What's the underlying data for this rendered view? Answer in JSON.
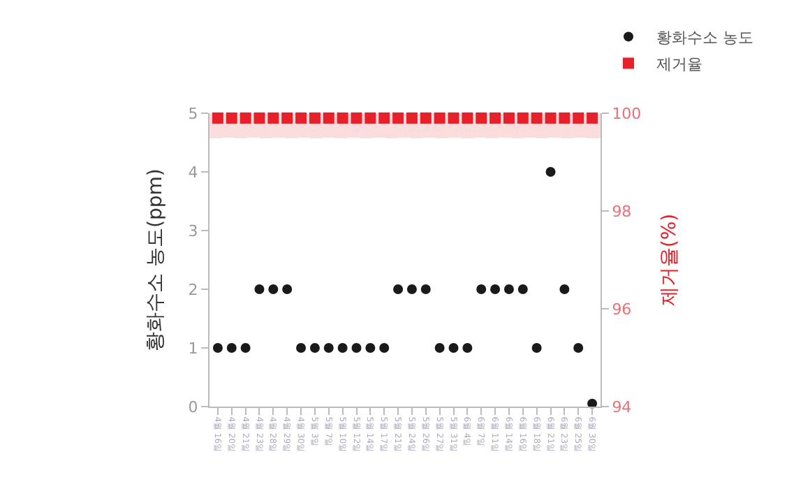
{
  "chart_data": {
    "type": "scatter",
    "xlabel": null,
    "ylabel": "황화수소 농도(ppm)",
    "y2label": "제거율(%)",
    "categories": [
      "4월 16일",
      "4월 20일",
      "4월 21일",
      "4월 23일",
      "4월 28일",
      "4월 29일",
      "4월 30일",
      "5월 3일",
      "5월 7일",
      "5월 10일",
      "5월 12일",
      "5월 14일",
      "5월 17일",
      "5월 21일",
      "5월 24일",
      "5월 26일",
      "5월 27일",
      "5월 31일",
      "6월 4일",
      "6월 7일",
      "6월 11일",
      "6월 14일",
      "6월 16일",
      "6월 18일",
      "6월 21일",
      "6월 23일",
      "6월 25일",
      "6월 30일"
    ],
    "series": [
      {
        "name": "황화수소 농도",
        "color": "#1a1a1a",
        "marker": "circle",
        "values": [
          1,
          1,
          1,
          2,
          2,
          2,
          1,
          1,
          1,
          1,
          1,
          1,
          1,
          2,
          2,
          2,
          1,
          1,
          1,
          2,
          2,
          2,
          2,
          1,
          4,
          2,
          1,
          0.05
        ]
      },
      {
        "name": "제거율",
        "color": "#e8202a",
        "marker": "square",
        "axis": "y2",
        "values": [
          99.9,
          99.9,
          99.9,
          99.9,
          99.9,
          99.9,
          99.9,
          99.9,
          99.9,
          99.9,
          99.9,
          99.9,
          99.9,
          99.9,
          99.9,
          99.9,
          99.9,
          99.9,
          99.9,
          99.9,
          99.9,
          99.9,
          99.9,
          99.9,
          99.9,
          99.9,
          99.9,
          99.9
        ]
      }
    ],
    "ylim": [
      0,
      5
    ],
    "yticks": [
      0,
      1,
      2,
      3,
      4,
      5
    ],
    "y2lim": [
      94,
      100
    ],
    "y2ticks": [
      94,
      96,
      98,
      100
    ],
    "bands": [
      {
        "axis": "y2",
        "from": 99.5,
        "to": 100,
        "color": "#f07a80"
      }
    ],
    "grid": false,
    "legend": "top right"
  }
}
